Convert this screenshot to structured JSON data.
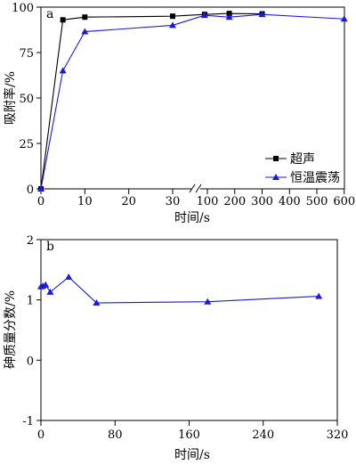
{
  "chart_data": [
    {
      "type": "line",
      "panel_label": "a",
      "xlabel": "时间/s",
      "ylabel": "吸附率/%",
      "ylim": [
        0,
        100
      ],
      "y_ticks": [
        0,
        25,
        50,
        75,
        100
      ],
      "x_axis_broken": true,
      "x_segments": [
        {
          "range": [
            0,
            30
          ],
          "ticks": [
            0,
            10,
            20,
            30
          ]
        },
        {
          "range": [
            60,
            600
          ],
          "ticks": [
            100,
            200,
            300,
            400,
            500,
            600
          ]
        }
      ],
      "x_tick_labels": [
        "0",
        "10",
        "20",
        "30",
        "100",
        "200",
        "300",
        "400",
        "500",
        "600"
      ],
      "legend": "right",
      "series": [
        {
          "name": "超声",
          "marker": "square",
          "color": "#000000",
          "x": [
            0,
            5,
            10,
            30,
            90,
            180,
            300
          ],
          "y": [
            0,
            93,
            94.5,
            95,
            96,
            96.5,
            96.3
          ]
        },
        {
          "name": "恒温震荡",
          "marker": "triangle",
          "color": "#1a1adb",
          "x": [
            0,
            5,
            10,
            30,
            90,
            180,
            300,
            600
          ],
          "y": [
            0,
            65,
            86.5,
            90,
            95.5,
            94.5,
            96,
            93.5
          ]
        }
      ]
    },
    {
      "type": "line",
      "panel_label": "b",
      "xlabel": "时间/s",
      "ylabel": "砷质量分数/%",
      "xlim": [
        0,
        320
      ],
      "ylim": [
        -1,
        2
      ],
      "x_ticks": [
        0,
        80,
        160,
        240,
        320
      ],
      "y_ticks": [
        -1,
        0,
        1,
        2
      ],
      "series": [
        {
          "marker": "triangle",
          "color": "#1a1adb",
          "x": [
            0,
            2,
            5,
            10,
            30,
            60,
            180,
            300
          ],
          "y": [
            1.22,
            1.23,
            1.25,
            1.13,
            1.38,
            0.95,
            0.97,
            1.06
          ]
        }
      ]
    }
  ]
}
